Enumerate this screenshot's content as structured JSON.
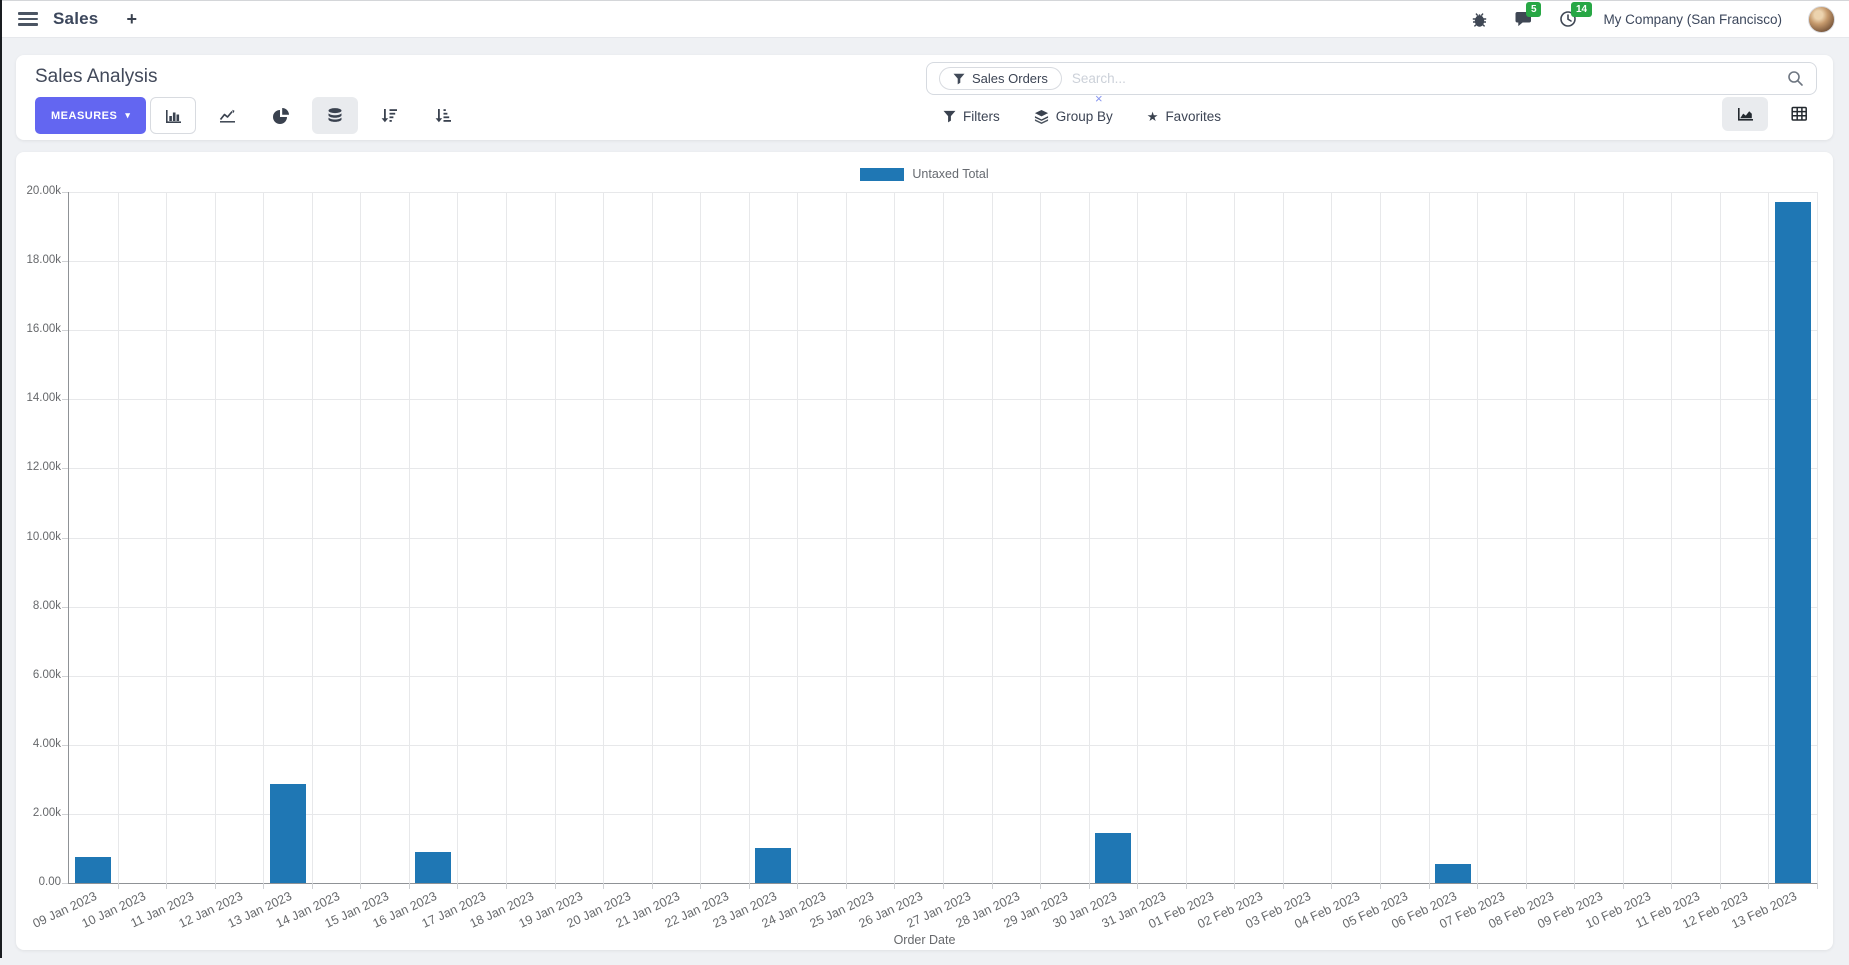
{
  "page": {
    "accent_color": "#6366f1",
    "badge_color": "#28a745"
  },
  "nav": {
    "app_name": "Sales",
    "new_tab_label": "+",
    "message_badge": "5",
    "activity_badge": "14",
    "company": "My Company (San Francisco)"
  },
  "control_panel": {
    "title": "Sales Analysis",
    "measures_label": "MEASURES",
    "measures_caret": "▾",
    "search_facet": "Sales Orders",
    "facet_close": "×",
    "search_placeholder": "Search...",
    "filters_label": "Filters",
    "group_by_label": "Group By",
    "favorites_label": "Favorites",
    "favorites_star": "★"
  },
  "chart_data": {
    "type": "bar",
    "title": "",
    "xlabel": "Order Date",
    "ylabel": "",
    "ylim": [
      0,
      20000
    ],
    "grid": true,
    "legend_position": "top",
    "y_tick_labels": [
      "20.00k",
      "18.00k",
      "16.00k",
      "14.00k",
      "12.00k",
      "10.00k",
      "8.00k",
      "6.00k",
      "4.00k",
      "2.00k",
      "0.00"
    ],
    "categories": [
      "09 Jan 2023",
      "10 Jan 2023",
      "11 Jan 2023",
      "12 Jan 2023",
      "13 Jan 2023",
      "14 Jan 2023",
      "15 Jan 2023",
      "16 Jan 2023",
      "17 Jan 2023",
      "18 Jan 2023",
      "19 Jan 2023",
      "20 Jan 2023",
      "21 Jan 2023",
      "22 Jan 2023",
      "23 Jan 2023",
      "24 Jan 2023",
      "25 Jan 2023",
      "26 Jan 2023",
      "27 Jan 2023",
      "28 Jan 2023",
      "29 Jan 2023",
      "30 Jan 2023",
      "31 Jan 2023",
      "01 Feb 2023",
      "02 Feb 2023",
      "03 Feb 2023",
      "04 Feb 2023",
      "05 Feb 2023",
      "06 Feb 2023",
      "07 Feb 2023",
      "08 Feb 2023",
      "09 Feb 2023",
      "10 Feb 2023",
      "11 Feb 2023",
      "12 Feb 2023",
      "13 Feb 2023"
    ],
    "series": [
      {
        "name": "Untaxed Total",
        "color": "#1f77b4",
        "values": [
          750,
          0,
          0,
          0,
          2880,
          0,
          0,
          900,
          0,
          0,
          0,
          0,
          0,
          0,
          1000,
          0,
          0,
          0,
          0,
          0,
          0,
          1460,
          0,
          0,
          0,
          0,
          0,
          0,
          560,
          0,
          0,
          0,
          0,
          0,
          0,
          19700
        ]
      }
    ]
  }
}
